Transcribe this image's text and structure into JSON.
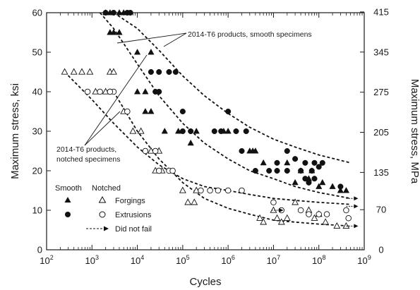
{
  "chart_data": {
    "type": "scatter",
    "x_scale": "log",
    "xlim": [
      100,
      1000000000
    ],
    "ylim": [
      0,
      60
    ],
    "y2lim": [
      0,
      415
    ],
    "xlabel": "Cycles",
    "ylabel": "Maximum stress, ksi",
    "y2label": "Maximum stress, MPa",
    "x_ticks": [
      {
        "value": 100,
        "base": "10",
        "exp": "2"
      },
      {
        "value": 1000,
        "base": "10",
        "exp": "3"
      },
      {
        "value": 10000,
        "base": "10",
        "exp": "4"
      },
      {
        "value": 100000,
        "base": "10",
        "exp": "5"
      },
      {
        "value": 1000000,
        "base": "10",
        "exp": "6"
      },
      {
        "value": 10000000,
        "base": "10",
        "exp": "7"
      },
      {
        "value": 100000000,
        "base": "10",
        "exp": "8"
      },
      {
        "value": 1000000000,
        "base": "10",
        "exp": "9"
      }
    ],
    "y_ticks": [
      0,
      10,
      20,
      30,
      40,
      50,
      60
    ],
    "y2_ticks": [
      {
        "label": "0",
        "ksi": 0
      },
      {
        "label": "70",
        "ksi": 10.15
      },
      {
        "label": "135",
        "ksi": 19.58
      },
      {
        "label": "205",
        "ksi": 29.73
      },
      {
        "label": "275",
        "ksi": 39.88
      },
      {
        "label": "345",
        "ksi": 50.04
      },
      {
        "label": "415",
        "ksi": 60.19
      }
    ],
    "grid": false,
    "legend": {
      "position": "lower-left",
      "header_smooth": "Smooth",
      "header_notched": "Notched",
      "rows": [
        {
          "label": "Forgings",
          "smooth_marker": "filled-triangle",
          "notched_marker": "open-triangle"
        },
        {
          "label": "Extrusions",
          "smooth_marker": "filled-circle",
          "notched_marker": "open-circle"
        },
        {
          "label": "Did not fail",
          "marker": "arrow"
        }
      ]
    },
    "annotations": [
      {
        "lines": [
          "2014-T6 products, smooth specimens"
        ]
      },
      {
        "lines": [
          "2014-T6 products,",
          "notched specimens"
        ]
      }
    ],
    "bands": [
      {
        "group": "smooth",
        "bound": "upper",
        "x": [
          3000,
          10000,
          30000,
          100000,
          300000,
          1000000,
          3000000,
          10000000,
          30000000,
          100000000,
          500000000
        ],
        "y": [
          60,
          56,
          50.5,
          44,
          39,
          34.5,
          31,
          28,
          26,
          24,
          22
        ]
      },
      {
        "group": "smooth",
        "bound": "lower",
        "x": [
          1500,
          3000,
          10000,
          30000,
          100000,
          300000,
          1000000,
          3000000,
          10000000,
          30000000,
          100000000,
          500000000
        ],
        "y": [
          60,
          56,
          47,
          39,
          32,
          27,
          23,
          20,
          18,
          16,
          14.5,
          13
        ]
      },
      {
        "group": "notched",
        "bound": "upper",
        "x": [
          250,
          1000,
          3000,
          10000,
          30000,
          100000,
          300000,
          1000000,
          3000000,
          10000000,
          30000000,
          100000000,
          500000000
        ],
        "y": [
          45,
          38,
          32,
          26,
          21.5,
          18,
          16,
          15,
          14,
          13,
          12.5,
          12,
          11.5
        ]
      },
      {
        "group": "notched",
        "bound": "lower",
        "x": [
          3000,
          10000,
          30000,
          100000,
          300000,
          1000000,
          3000000,
          10000000,
          30000000,
          100000000,
          500000000
        ],
        "y": [
          40,
          30,
          23,
          17,
          13,
          10.5,
          9,
          7.5,
          7,
          6.5,
          6
        ]
      }
    ],
    "series": [
      {
        "name": "Forgings",
        "group": "smooth",
        "marker": "filled-triangle",
        "points": [
          [
            2000,
            60
          ],
          [
            2500,
            60
          ],
          [
            4000,
            60
          ],
          [
            5000,
            60
          ],
          [
            2500,
            55
          ],
          [
            3000,
            55
          ],
          [
            4000,
            55
          ],
          [
            10000,
            50
          ],
          [
            20000,
            50
          ],
          [
            10000,
            40
          ],
          [
            15000,
            40
          ],
          [
            15000,
            35
          ],
          [
            20000,
            35
          ],
          [
            40000,
            30
          ],
          [
            80000,
            30
          ],
          [
            150000,
            27
          ],
          [
            200000,
            30
          ],
          [
            800000,
            30
          ],
          [
            1000000,
            30
          ],
          [
            3000000,
            25
          ],
          [
            3500000,
            25
          ],
          [
            4000000,
            25
          ],
          [
            6000000,
            22
          ],
          [
            20000000,
            22
          ],
          [
            40000000,
            20
          ],
          [
            70000000,
            20
          ],
          [
            30000000,
            17
          ],
          [
            60000000,
            18
          ],
          [
            100000000,
            16
          ],
          [
            120000000,
            17
          ],
          [
            200000000,
            16
          ],
          [
            300000000,
            15
          ],
          [
            400000000,
            15
          ]
        ]
      },
      {
        "name": "Extrusions",
        "group": "smooth",
        "marker": "filled-circle",
        "points": [
          [
            2000,
            60
          ],
          [
            3000,
            60
          ],
          [
            6000,
            60
          ],
          [
            7000,
            60
          ],
          [
            20000,
            45
          ],
          [
            30000,
            45
          ],
          [
            50000,
            45
          ],
          [
            70000,
            45
          ],
          [
            25000,
            40
          ],
          [
            30000,
            40
          ],
          [
            100000,
            35
          ],
          [
            100000,
            30
          ],
          [
            150000,
            30
          ],
          [
            500000,
            30
          ],
          [
            700000,
            30
          ],
          [
            1000000,
            35
          ],
          [
            1500000,
            30
          ],
          [
            2000000,
            25
          ],
          [
            2500000,
            30
          ],
          [
            4000000,
            20
          ],
          [
            8000000,
            20
          ],
          [
            12000000,
            22
          ],
          [
            20000000,
            25
          ],
          [
            30000000,
            23
          ],
          [
            50000000,
            22
          ],
          [
            80000000,
            22
          ],
          [
            120000000,
            22
          ],
          [
            12000000,
            20
          ],
          [
            20000000,
            20
          ],
          [
            40000000,
            20
          ],
          [
            70000000,
            20
          ],
          [
            100000000,
            21
          ],
          [
            50000000,
            18
          ],
          [
            60000000,
            17
          ],
          [
            80000000,
            18
          ],
          [
            300000000,
            16
          ]
        ]
      },
      {
        "name": "Forgings",
        "group": "notched",
        "marker": "open-triangle",
        "points": [
          [
            250,
            45
          ],
          [
            400,
            45
          ],
          [
            600,
            45
          ],
          [
            900,
            45
          ],
          [
            2500,
            45
          ],
          [
            3000,
            45
          ],
          [
            1200,
            40
          ],
          [
            2000,
            40
          ],
          [
            5000,
            35
          ],
          [
            8000,
            30
          ],
          [
            12000,
            30
          ],
          [
            20000,
            25
          ],
          [
            30000,
            25
          ],
          [
            25000,
            20
          ],
          [
            35000,
            20
          ],
          [
            100000,
            15
          ],
          [
            130000,
            12
          ],
          [
            180000,
            12
          ],
          [
            200000,
            15
          ],
          [
            5000000,
            8
          ],
          [
            6000000,
            7
          ],
          [
            10000000,
            10
          ],
          [
            12000000,
            8
          ],
          [
            15000000,
            7
          ],
          [
            20000000,
            8
          ],
          [
            30000000,
            12
          ],
          [
            60000000,
            10
          ],
          [
            80000000,
            8
          ],
          [
            100000000,
            9
          ],
          [
            140000000,
            7
          ],
          [
            250000000,
            6
          ],
          [
            400000000,
            6
          ]
        ]
      },
      {
        "name": "Extrusions",
        "group": "notched",
        "marker": "open-circle",
        "points": [
          [
            800,
            40
          ],
          [
            1500,
            40
          ],
          [
            2500,
            40
          ],
          [
            3000,
            40
          ],
          [
            2500,
            40
          ],
          [
            6000,
            35
          ],
          [
            15000,
            25
          ],
          [
            25000,
            25
          ],
          [
            50000,
            20
          ],
          [
            60000,
            20
          ],
          [
            30000,
            20
          ],
          [
            250000,
            15
          ],
          [
            400000,
            15
          ],
          [
            600000,
            15
          ],
          [
            1000000,
            15
          ],
          [
            2000000,
            15
          ],
          [
            10000000,
            12
          ],
          [
            15000000,
            10
          ],
          [
            40000000,
            10
          ],
          [
            60000000,
            9
          ],
          [
            100000000,
            9
          ],
          [
            150000000,
            9
          ],
          [
            400000000,
            10
          ],
          [
            450000000,
            8
          ]
        ]
      }
    ],
    "not_failed": [
      {
        "x": 9000000,
        "y": 10
      },
      {
        "x": 400000000,
        "y": 6
      },
      {
        "x": 400000000,
        "y": 11
      },
      {
        "x": 400000000,
        "y": 13
      }
    ]
  }
}
